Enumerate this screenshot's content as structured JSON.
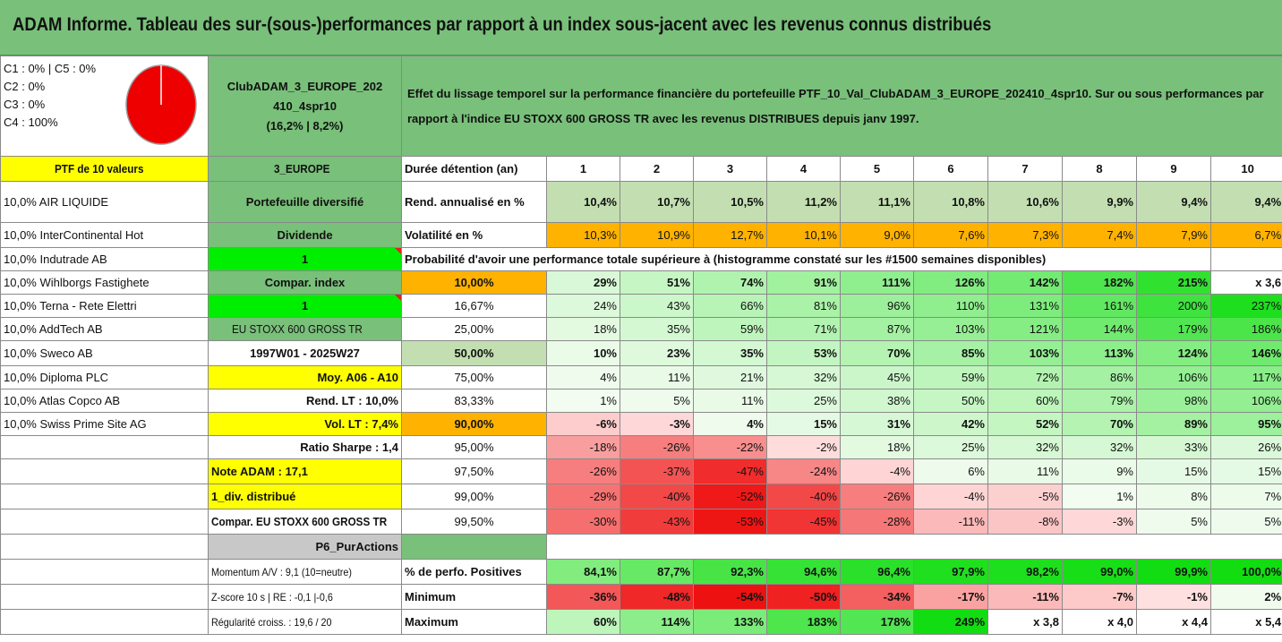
{
  "title": "ADAM Informe. Tableau des sur-(sous-)performances par rapport à un index sous-jacent avec les revenus connus distribués",
  "info": {
    "lines": [
      "C1 : 0% | C5 : 0%",
      "C2 : 0%",
      "C3 : 0%",
      "C4 : 100%"
    ],
    "pie_color": "#ee0000",
    "pie_share": 1.0
  },
  "fund": {
    "line1": "ClubADAM_3_EUROPE_202",
    "line2": "410_4spr10",
    "line3": "(16,2% | 8,2%)"
  },
  "description": "Effet du lissage temporel sur la performance financière du portefeuille PTF_10_Val_ClubADAM_3_EUROPE_202410_4spr10. Sur ou sous performances par rapport à l'indice EU STOXX 600 GROSS TR avec les revenus DISTRIBUES depuis janv 1997.",
  "header": {
    "ptf": "PTF de 10 valeurs",
    "region": "3_EUROPE",
    "duration_label": "Durée détention (an)",
    "years": [
      "1",
      "2",
      "3",
      "4",
      "5",
      "6",
      "7",
      "8",
      "9",
      "10"
    ]
  },
  "holdings": [
    "10,0% AIR LIQUIDE",
    "10,0% InterContinental Hot",
    "10,0% Indutrade AB",
    "10,0% Wihlborgs Fastighete",
    "10,0% Terna - Rete Elettri",
    "10,0% AddTech AB",
    "10,0% Sweco AB",
    "10,0% Diploma PLC",
    "10,0% Atlas Copco AB",
    "10,0% Swiss Prime Site AG"
  ],
  "side": {
    "portfolio": "Portefeuille diversifié",
    "dividend": "Dividende",
    "one_a": "1",
    "compar": "Compar. index",
    "one_b": "1",
    "index_name": "EU STOXX 600 GROSS TR",
    "period": "1997W01 - 2025W27",
    "moy": "Moy. A06 - A10",
    "rend_lt": "Rend. LT : 10,0%",
    "vol_lt": "Vol. LT : 7,4%",
    "sharpe": "Ratio Sharpe : 1,4",
    "note": "Note ADAM : 17,1",
    "div": "1_div. distribué",
    "compar_full": "Compar. EU STOXX 600 GROSS TR",
    "p6": "P6_PurActions",
    "momentum": "Momentum A/V : 9,1 (10=neutre)",
    "zscore": "Z-score 10 s | RE : -0,1 |-0,6",
    "regularite": "Régularité croiss. : 19,6 / 20"
  },
  "rend": {
    "label": "Rend. annualisé en %",
    "values": [
      "10,4%",
      "10,7%",
      "10,5%",
      "11,2%",
      "11,1%",
      "10,8%",
      "10,6%",
      "9,9%",
      "9,4%",
      "9,4%"
    ]
  },
  "vol": {
    "label": "Volatilité en %",
    "values": [
      "10,3%",
      "10,9%",
      "12,7%",
      "10,1%",
      "9,0%",
      "7,6%",
      "7,3%",
      "7,4%",
      "7,9%",
      "6,7%"
    ]
  },
  "prob_title": "Probabilité d'avoir une performance totale supérieure à (histogramme constaté sur les #1500 semaines disponibles)",
  "quantiles": [
    {
      "p": "10,00%",
      "v": [
        "29%",
        "51%",
        "74%",
        "91%",
        "111%",
        "126%",
        "142%",
        "182%",
        "215%",
        "x 3,6"
      ]
    },
    {
      "p": "16,67%",
      "v": [
        "24%",
        "43%",
        "66%",
        "81%",
        "96%",
        "110%",
        "131%",
        "161%",
        "200%",
        "237%"
      ]
    },
    {
      "p": "25,00%",
      "v": [
        "18%",
        "35%",
        "59%",
        "71%",
        "87%",
        "103%",
        "121%",
        "144%",
        "179%",
        "186%"
      ]
    },
    {
      "p": "50,00%",
      "v": [
        "10%",
        "23%",
        "35%",
        "53%",
        "70%",
        "85%",
        "103%",
        "113%",
        "124%",
        "146%"
      ]
    },
    {
      "p": "75,00%",
      "v": [
        "4%",
        "11%",
        "21%",
        "32%",
        "45%",
        "59%",
        "72%",
        "86%",
        "106%",
        "117%"
      ]
    },
    {
      "p": "83,33%",
      "v": [
        "1%",
        "5%",
        "11%",
        "25%",
        "38%",
        "50%",
        "60%",
        "79%",
        "98%",
        "106%"
      ]
    },
    {
      "p": "90,00%",
      "v": [
        "-6%",
        "-3%",
        "4%",
        "15%",
        "31%",
        "42%",
        "52%",
        "70%",
        "89%",
        "95%"
      ]
    },
    {
      "p": "95,00%",
      "v": [
        "-18%",
        "-26%",
        "-22%",
        "-2%",
        "18%",
        "25%",
        "32%",
        "32%",
        "33%",
        "26%"
      ]
    },
    {
      "p": "97,50%",
      "v": [
        "-26%",
        "-37%",
        "-47%",
        "-24%",
        "-4%",
        "6%",
        "11%",
        "9%",
        "15%",
        "15%"
      ]
    },
    {
      "p": "99,00%",
      "v": [
        "-29%",
        "-40%",
        "-52%",
        "-40%",
        "-26%",
        "-4%",
        "-5%",
        "1%",
        "8%",
        "7%"
      ]
    },
    {
      "p": "99,50%",
      "v": [
        "-30%",
        "-43%",
        "-53%",
        "-45%",
        "-28%",
        "-11%",
        "-8%",
        "-3%",
        "5%",
        "5%"
      ]
    }
  ],
  "positives": {
    "label": "% de perfo. Positives",
    "values": [
      "84,1%",
      "87,7%",
      "92,3%",
      "94,6%",
      "96,4%",
      "97,9%",
      "98,2%",
      "99,0%",
      "99,9%",
      "100,0%"
    ]
  },
  "minimum": {
    "label": "Minimum",
    "values": [
      "-36%",
      "-48%",
      "-54%",
      "-50%",
      "-34%",
      "-17%",
      "-11%",
      "-7%",
      "-1%",
      "2%"
    ]
  },
  "maximum": {
    "label": "Maximum",
    "values": [
      "60%",
      "114%",
      "133%",
      "183%",
      "178%",
      "249%",
      "x 3,8",
      "x 4,0",
      "x 4,4",
      "x 5,4"
    ]
  }
}
